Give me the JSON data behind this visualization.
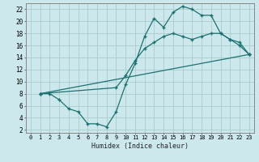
{
  "xlabel": "Humidex (Indice chaleur)",
  "bg_color": "#cce8ec",
  "grid_color": "#aacccc",
  "line_color": "#1e7070",
  "xlim": [
    -0.5,
    23.5
  ],
  "ylim": [
    1.5,
    23
  ],
  "xticks": [
    0,
    1,
    2,
    3,
    4,
    5,
    6,
    7,
    8,
    9,
    10,
    11,
    12,
    13,
    14,
    15,
    16,
    17,
    18,
    19,
    20,
    21,
    22,
    23
  ],
  "yticks": [
    2,
    4,
    6,
    8,
    10,
    12,
    14,
    16,
    18,
    20,
    22
  ],
  "line1_x": [
    1,
    2,
    3,
    4,
    5,
    6,
    7,
    8,
    9,
    10,
    11,
    12,
    13,
    14,
    15,
    16,
    17,
    18,
    19,
    20,
    21,
    22,
    23
  ],
  "line1_y": [
    8,
    8,
    7,
    5.5,
    5,
    3,
    3,
    2.5,
    5,
    9.5,
    13,
    17.5,
    20.5,
    19,
    21.5,
    22.5,
    22,
    21,
    21,
    18,
    17,
    16.5,
    14.5
  ],
  "line2_x": [
    1,
    9,
    10,
    11,
    12,
    13,
    14,
    15,
    16,
    17,
    18,
    19,
    20,
    21,
    22,
    23
  ],
  "line2_y": [
    8,
    9,
    11,
    13.5,
    15.5,
    16.5,
    17.5,
    18,
    17.5,
    17,
    17.5,
    18,
    18,
    17,
    16,
    14.5
  ],
  "line3_x": [
    1,
    23
  ],
  "line3_y": [
    8,
    14.5
  ],
  "marker_size": 2.5
}
